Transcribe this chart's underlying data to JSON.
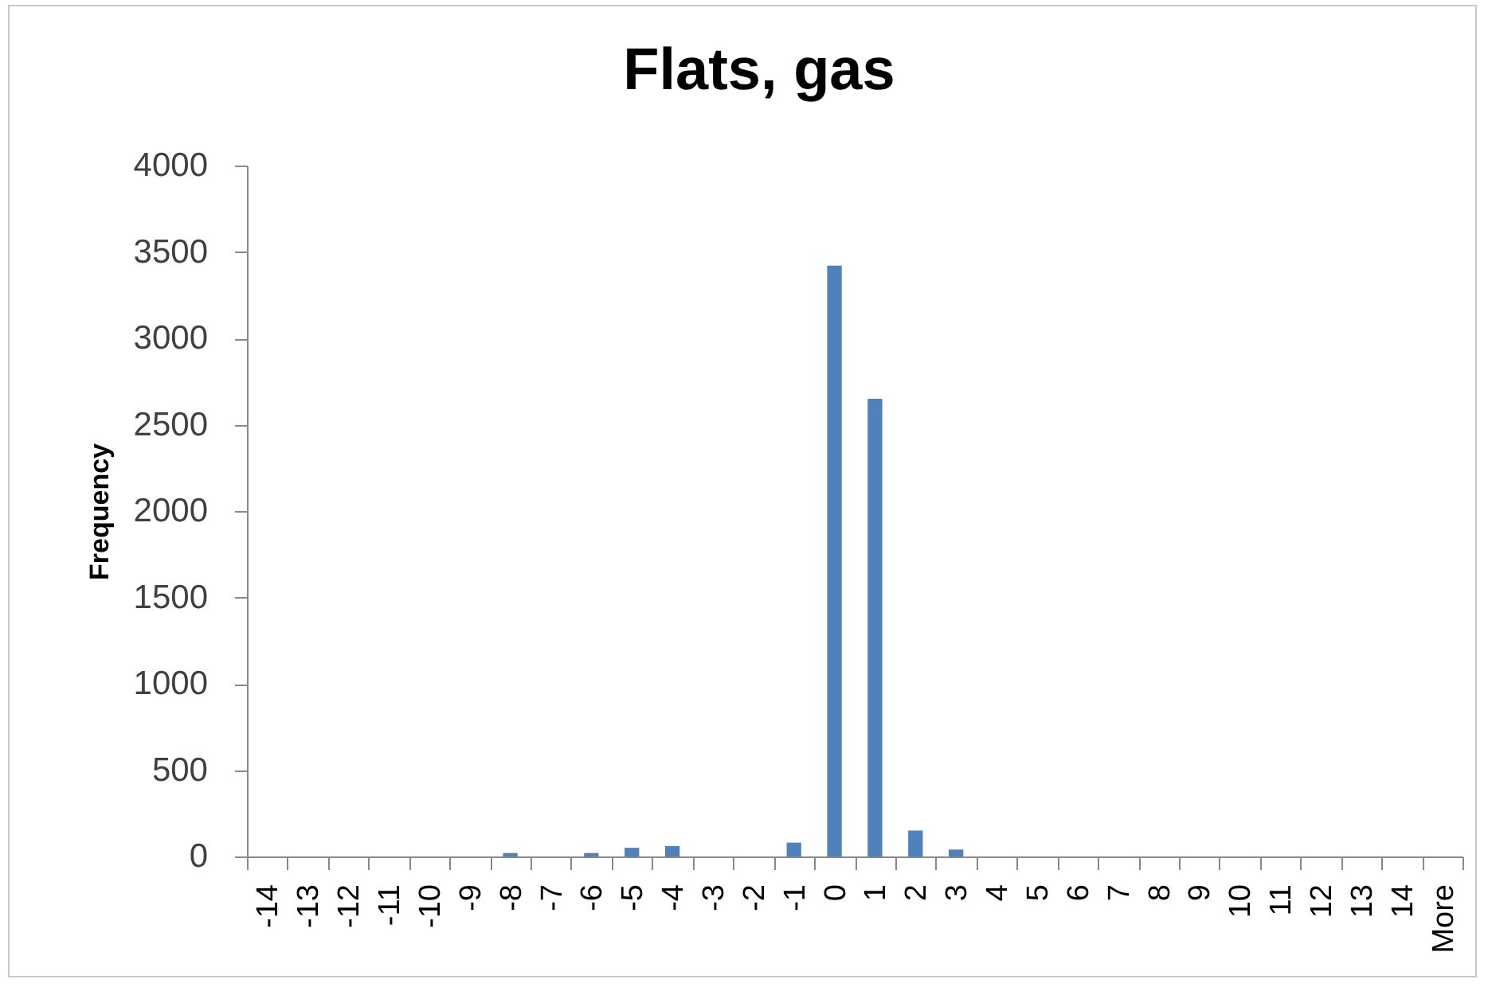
{
  "chart_data": {
    "type": "bar",
    "title": "Flats, gas",
    "ylabel": "Frequency",
    "categories": [
      "-14",
      "-13",
      "-12",
      "-11",
      "-10",
      "-9",
      "-8",
      "-7",
      "-6",
      "-5",
      "-4",
      "-3",
      "-2",
      "-1",
      "0",
      "1",
      "2",
      "3",
      "4",
      "5",
      "6",
      "7",
      "8",
      "9",
      "10",
      "11",
      "12",
      "13",
      "14",
      "More"
    ],
    "values": [
      0,
      0,
      0,
      0,
      0,
      0,
      20,
      0,
      20,
      50,
      60,
      0,
      0,
      80,
      3420,
      2650,
      150,
      40,
      0,
      0,
      0,
      0,
      0,
      0,
      0,
      0,
      0,
      0,
      0,
      0
    ],
    "color": "#4f81bd",
    "ylim": [
      0,
      4000
    ],
    "yticks": [
      0,
      500,
      1000,
      1500,
      2000,
      2500,
      3000,
      3500,
      4000
    ],
    "grid": false
  }
}
